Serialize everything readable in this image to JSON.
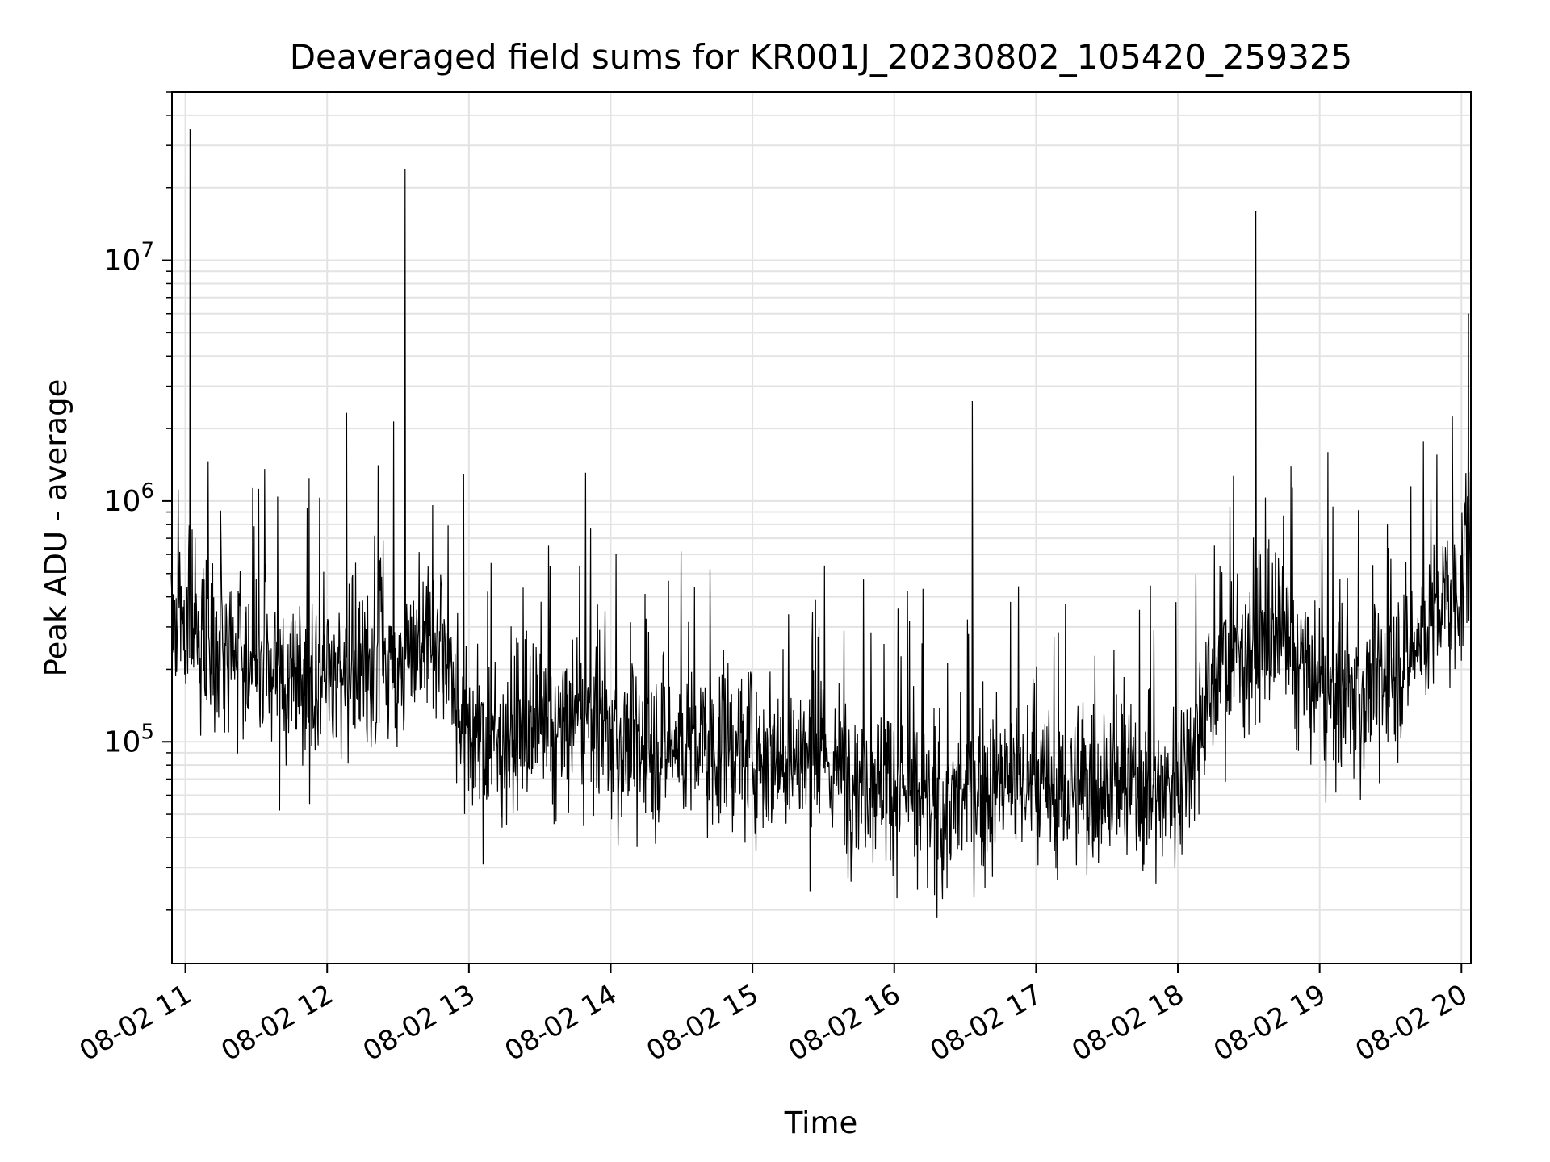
{
  "chart_data": {
    "type": "line",
    "title": "Deaveraged field sums for KR001J_20230802_105420_259325",
    "xlabel": "Time",
    "ylabel": "Peak ADU - average",
    "xlim": [
      "2023-08-02 10:54:20",
      "2023-08-02 20:04:00"
    ],
    "ylim": [
      12000,
      50000000
    ],
    "yscale": "log",
    "grid": true,
    "line_color": "#000000",
    "x_ticks": [
      {
        "value": "2023-08-02 11:00",
        "label": "08-02 11"
      },
      {
        "value": "2023-08-02 12:00",
        "label": "08-02 12"
      },
      {
        "value": "2023-08-02 13:00",
        "label": "08-02 13"
      },
      {
        "value": "2023-08-02 14:00",
        "label": "08-02 14"
      },
      {
        "value": "2023-08-02 15:00",
        "label": "08-02 15"
      },
      {
        "value": "2023-08-02 16:00",
        "label": "08-02 16"
      },
      {
        "value": "2023-08-02 17:00",
        "label": "08-02 17"
      },
      {
        "value": "2023-08-02 18:00",
        "label": "08-02 18"
      },
      {
        "value": "2023-08-02 19:00",
        "label": "08-02 19"
      },
      {
        "value": "2023-08-02 20:00",
        "label": "08-02 20"
      }
    ],
    "y_ticks": [
      {
        "value": 100000,
        "base": "10",
        "exp": "5"
      },
      {
        "value": 1000000,
        "base": "10",
        "exp": "6"
      },
      {
        "value": 10000000,
        "base": "10",
        "exp": "7"
      }
    ],
    "series": [
      {
        "x": [
          "2023-08-02 10:54",
          "2023-08-02 11:00",
          "2023-08-02 11:10",
          "2023-08-02 11:20",
          "2023-08-02 11:30",
          "2023-08-02 11:40",
          "2023-08-02 11:50",
          "2023-08-02 12:00",
          "2023-08-02 12:10",
          "2023-08-02 12:20",
          "2023-08-02 12:30",
          "2023-08-02 12:40",
          "2023-08-02 12:50",
          "2023-08-02 13:00",
          "2023-08-02 13:10",
          "2023-08-02 13:20",
          "2023-08-02 13:30",
          "2023-08-02 13:40",
          "2023-08-02 13:50",
          "2023-08-02 14:00",
          "2023-08-02 14:10",
          "2023-08-02 14:20",
          "2023-08-02 14:30",
          "2023-08-02 14:40",
          "2023-08-02 14:50",
          "2023-08-02 15:00",
          "2023-08-02 15:10",
          "2023-08-02 15:20",
          "2023-08-02 15:30",
          "2023-08-02 15:40",
          "2023-08-02 15:50",
          "2023-08-02 16:00",
          "2023-08-02 16:10",
          "2023-08-02 16:20",
          "2023-08-02 16:30",
          "2023-08-02 16:40",
          "2023-08-02 16:50",
          "2023-08-02 17:00",
          "2023-08-02 17:10",
          "2023-08-02 17:20",
          "2023-08-02 17:30",
          "2023-08-02 17:40",
          "2023-08-02 17:50",
          "2023-08-02 18:00",
          "2023-08-02 18:10",
          "2023-08-02 18:20",
          "2023-08-02 18:30",
          "2023-08-02 18:40",
          "2023-08-02 18:50",
          "2023-08-02 19:00",
          "2023-08-02 19:10",
          "2023-08-02 19:20",
          "2023-08-02 19:30",
          "2023-08-02 19:40",
          "2023-08-02 19:50",
          "2023-08-02 20:00",
          "2023-08-02 20:04"
        ],
        "y": [
          350000,
          320000,
          270000,
          230000,
          200000,
          180000,
          170000,
          190000,
          200000,
          190000,
          210000,
          300000,
          250000,
          100000,
          100000,
          110000,
          105000,
          110000,
          130000,
          105000,
          95000,
          95000,
          100000,
          95000,
          95000,
          92000,
          90000,
          85000,
          80000,
          75000,
          72000,
          70000,
          55000,
          50000,
          60000,
          65000,
          70000,
          65000,
          60000,
          65000,
          70000,
          65000,
          62000,
          70000,
          130000,
          220000,
          250000,
          260000,
          220000,
          160000,
          150000,
          160000,
          190000,
          250000,
          350000,
          450000,
          600000
        ],
        "spikes": [
          {
            "x": "2023-08-02 11:02",
            "y": 35000000
          },
          {
            "x": "2023-08-02 12:33",
            "y": 24000000
          },
          {
            "x": "2023-08-02 16:33",
            "y": 2600000
          },
          {
            "x": "2023-08-02 18:33",
            "y": 16000000
          },
          {
            "x": "2023-08-02 20:03",
            "y": 6000000
          }
        ]
      }
    ]
  }
}
